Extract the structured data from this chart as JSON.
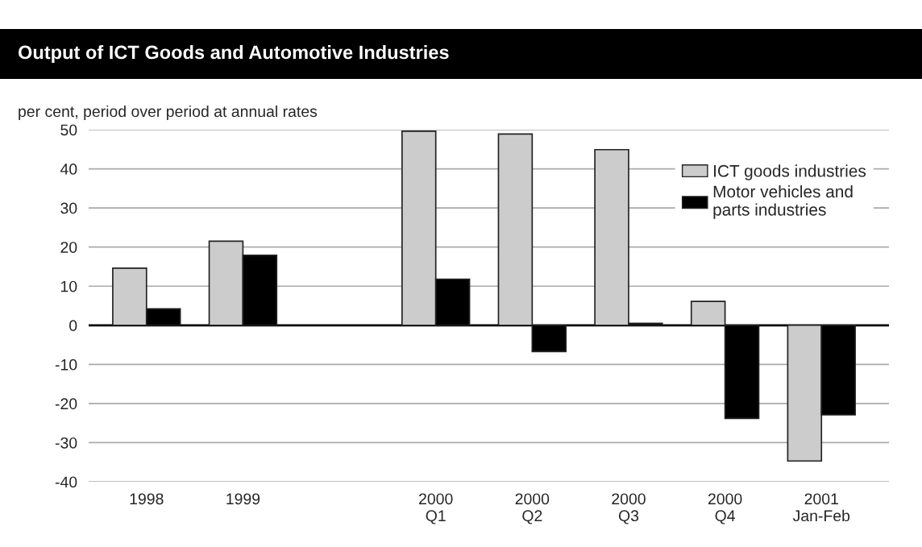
{
  "chart_data": {
    "type": "bar",
    "title": "Output of ICT Goods and Automotive Industries",
    "ylabel": "per cent, period over period at annual rates",
    "categories": [
      "1998",
      "1999",
      null,
      "2000\nQ1",
      "2000\nQ2",
      "2000\nQ3",
      "2000\nQ4",
      "2001\nJan-Feb"
    ],
    "series": [
      {
        "name": "ICT goods industries",
        "color": "#cccccc",
        "values": [
          14.6,
          21.5,
          null,
          49.6,
          48.9,
          44.9,
          6.1,
          -34.7
        ]
      },
      {
        "name": "Motor vehicles and\nparts industries",
        "color": "#000000",
        "values": [
          4.2,
          17.9,
          null,
          11.8,
          -6.7,
          0.5,
          -23.8,
          -22.9
        ]
      }
    ],
    "ylim": [
      -40,
      50
    ],
    "yticks": [
      -40,
      -30,
      -20,
      -10,
      0,
      10,
      20,
      30,
      40,
      50
    ],
    "ref_lines": [
      {
        "axis": "y",
        "value": 0,
        "color": "#000000"
      }
    ],
    "grid": "y",
    "legend": "top right"
  }
}
